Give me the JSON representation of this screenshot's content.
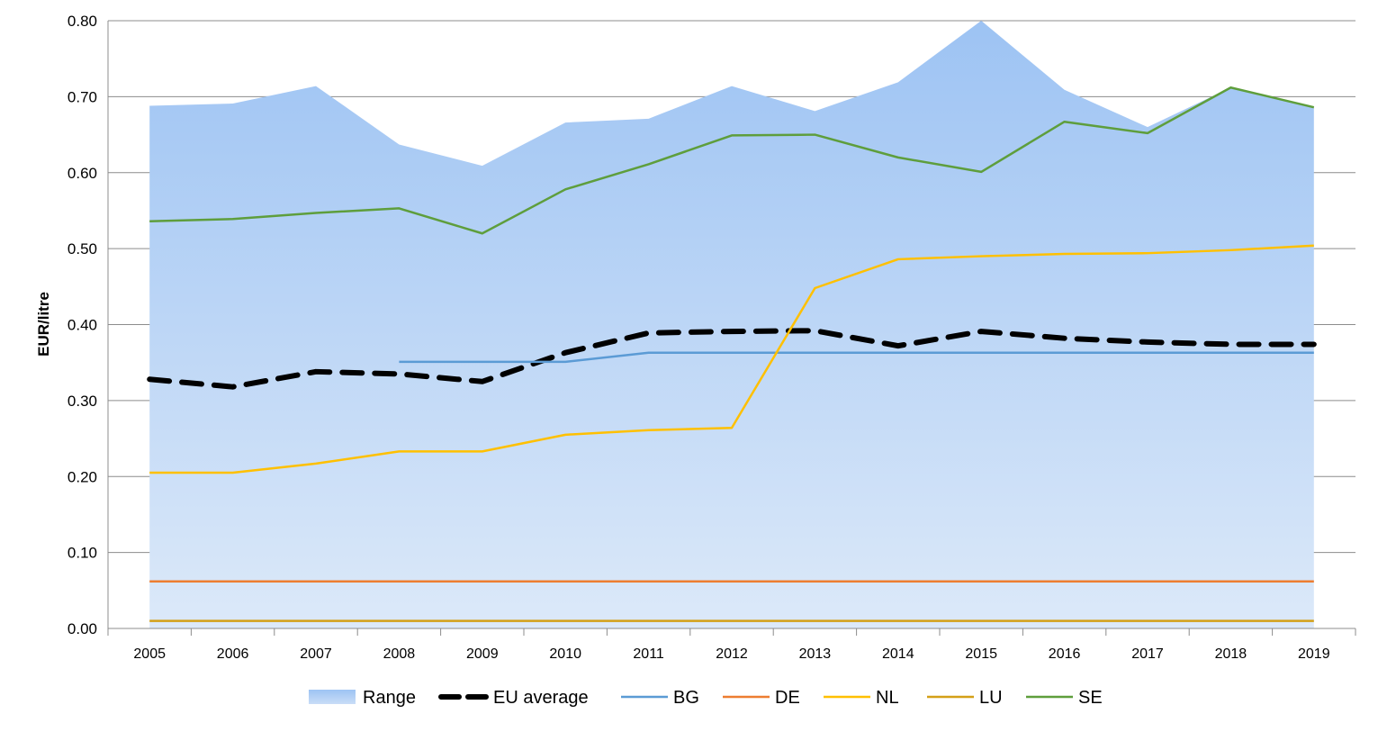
{
  "chart_data": {
    "type": "line",
    "title": "",
    "xlabel": "",
    "ylabel": "EUR/litre",
    "ylim": [
      0,
      0.8
    ],
    "y_ticks": [
      "0.00",
      "0.10",
      "0.20",
      "0.30",
      "0.40",
      "0.50",
      "0.60",
      "0.70",
      "0.80"
    ],
    "grid": true,
    "legend_position": "bottom",
    "categories": [
      "2005",
      "2006",
      "2007",
      "2008",
      "2009",
      "2010",
      "2011",
      "2012",
      "2013",
      "2014",
      "2015",
      "2016",
      "2017",
      "2018",
      "2019"
    ],
    "series": [
      {
        "name": "Range",
        "kind": "area",
        "color": "#9dc3f0",
        "values": [
          0.688,
          0.691,
          0.714,
          0.637,
          0.609,
          0.666,
          0.671,
          0.714,
          0.681,
          0.719,
          0.8,
          0.709,
          0.66,
          0.712,
          0.686
        ]
      },
      {
        "name": "EU average",
        "kind": "dashed",
        "color": "#000000",
        "values": [
          0.328,
          0.318,
          0.338,
          0.335,
          0.325,
          0.363,
          0.389,
          0.391,
          0.392,
          0.372,
          0.391,
          0.382,
          0.377,
          0.374,
          0.374
        ]
      },
      {
        "name": "BG",
        "kind": "line",
        "color": "#5b9bd5",
        "values": [
          null,
          null,
          null,
          0.351,
          0.351,
          0.351,
          0.363,
          0.363,
          0.363,
          0.363,
          0.363,
          0.363,
          0.363,
          0.363,
          0.363
        ]
      },
      {
        "name": "DE",
        "kind": "line",
        "color": "#ed7d31",
        "values": [
          0.062,
          0.062,
          0.062,
          0.062,
          0.062,
          0.062,
          0.062,
          0.062,
          0.062,
          0.062,
          0.062,
          0.062,
          0.062,
          0.062,
          0.062
        ]
      },
      {
        "name": "NL",
        "kind": "line",
        "color": "#ffc000",
        "values": [
          0.205,
          0.205,
          0.217,
          0.233,
          0.233,
          0.255,
          0.261,
          0.264,
          0.448,
          0.486,
          0.49,
          0.493,
          0.494,
          0.498,
          0.504
        ]
      },
      {
        "name": "LU",
        "kind": "line",
        "color": "#d4a017",
        "values": [
          0.01,
          0.01,
          0.01,
          0.01,
          0.01,
          0.01,
          0.01,
          0.01,
          0.01,
          0.01,
          0.01,
          0.01,
          0.01,
          0.01,
          0.01
        ]
      },
      {
        "name": "SE",
        "kind": "line",
        "color": "#5e9e3c",
        "values": [
          0.536,
          0.539,
          0.547,
          0.553,
          0.52,
          0.578,
          0.611,
          0.649,
          0.65,
          0.62,
          0.601,
          0.667,
          0.652,
          0.712,
          0.686
        ]
      }
    ]
  }
}
